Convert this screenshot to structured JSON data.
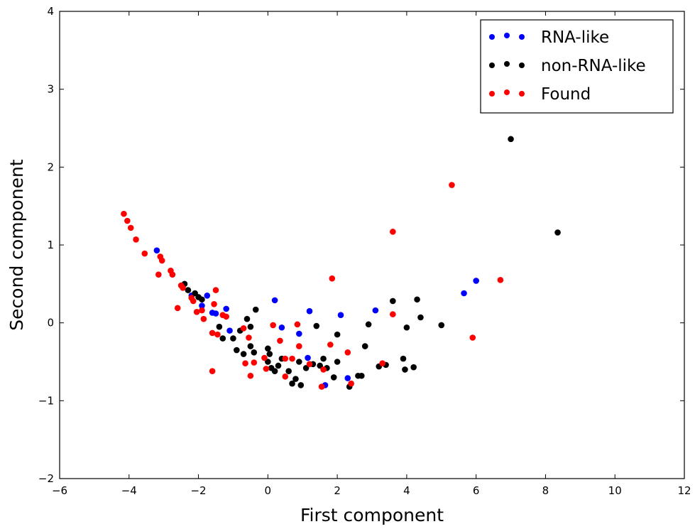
{
  "chart_data": {
    "type": "scatter",
    "title": "",
    "xlabel": "First component",
    "ylabel": "Second component",
    "xlim": [
      -6,
      12
    ],
    "ylim": [
      -2,
      4
    ],
    "x_ticks": [
      "−6",
      "−4",
      "−2",
      "0",
      "2",
      "4",
      "6",
      "8",
      "10",
      "12"
    ],
    "y_ticks": [
      "−2",
      "−1",
      "0",
      "1",
      "2",
      "3",
      "4"
    ],
    "grid": false,
    "legend_position": "top-right",
    "series": [
      {
        "name": "RNA-like",
        "color": "#0000ff",
        "points": [
          [
            -3.2,
            0.93
          ],
          [
            -2.2,
            0.35
          ],
          [
            -1.9,
            0.22
          ],
          [
            -1.75,
            0.35
          ],
          [
            -1.6,
            0.13
          ],
          [
            -1.5,
            0.12
          ],
          [
            -1.2,
            0.18
          ],
          [
            -1.1,
            -0.1
          ],
          [
            0.2,
            0.29
          ],
          [
            0.4,
            -0.06
          ],
          [
            0.9,
            -0.14
          ],
          [
            1.15,
            -0.45
          ],
          [
            1.2,
            0.15
          ],
          [
            1.65,
            -0.8
          ],
          [
            2.1,
            0.1
          ],
          [
            2.3,
            -0.71
          ],
          [
            3.1,
            0.16
          ],
          [
            5.65,
            0.38
          ],
          [
            6.0,
            0.54
          ]
        ]
      },
      {
        "name": "non-RNA-like",
        "color": "#000000",
        "points": [
          [
            -2.4,
            0.5
          ],
          [
            -2.3,
            0.42
          ],
          [
            -2.1,
            0.38
          ],
          [
            -2.0,
            0.33
          ],
          [
            -1.9,
            0.3
          ],
          [
            -1.4,
            -0.05
          ],
          [
            -1.3,
            -0.2
          ],
          [
            -1.0,
            -0.2
          ],
          [
            -0.9,
            -0.35
          ],
          [
            -0.8,
            -0.1
          ],
          [
            -0.7,
            -0.4
          ],
          [
            -0.6,
            0.05
          ],
          [
            -0.5,
            -0.3
          ],
          [
            -0.5,
            -0.05
          ],
          [
            -0.4,
            -0.38
          ],
          [
            -0.35,
            0.17
          ],
          [
            0.0,
            -0.33
          ],
          [
            0.0,
            -0.5
          ],
          [
            0.05,
            -0.4
          ],
          [
            0.1,
            -0.58
          ],
          [
            0.2,
            -0.62
          ],
          [
            0.3,
            -0.55
          ],
          [
            0.4,
            -0.46
          ],
          [
            0.6,
            -0.62
          ],
          [
            0.7,
            -0.78
          ],
          [
            0.8,
            -0.72
          ],
          [
            0.9,
            -0.5
          ],
          [
            0.95,
            -0.8
          ],
          [
            1.1,
            -0.58
          ],
          [
            1.3,
            -0.53
          ],
          [
            1.4,
            -0.04
          ],
          [
            1.5,
            -0.55
          ],
          [
            1.6,
            -0.46
          ],
          [
            1.7,
            -0.58
          ],
          [
            1.9,
            -0.7
          ],
          [
            2.0,
            -0.5
          ],
          [
            2.0,
            -0.15
          ],
          [
            2.35,
            -0.82
          ],
          [
            2.6,
            -0.68
          ],
          [
            2.7,
            -0.68
          ],
          [
            2.8,
            -0.3
          ],
          [
            2.9,
            -0.02
          ],
          [
            3.2,
            -0.56
          ],
          [
            3.4,
            -0.54
          ],
          [
            3.6,
            0.28
          ],
          [
            3.9,
            -0.46
          ],
          [
            3.95,
            -0.6
          ],
          [
            4.0,
            -0.06
          ],
          [
            4.2,
            -0.57
          ],
          [
            4.3,
            0.3
          ],
          [
            4.4,
            0.07
          ],
          [
            5.0,
            -0.03
          ],
          [
            7.0,
            2.36
          ],
          [
            8.35,
            1.16
          ]
        ]
      },
      {
        "name": "Found",
        "color": "#ff0000",
        "points": [
          [
            -4.15,
            1.4
          ],
          [
            -4.05,
            1.31
          ],
          [
            -3.95,
            1.22
          ],
          [
            -3.8,
            1.07
          ],
          [
            -3.55,
            0.89
          ],
          [
            -3.15,
            0.62
          ],
          [
            -3.1,
            0.85
          ],
          [
            -3.05,
            0.8
          ],
          [
            -2.8,
            0.67
          ],
          [
            -2.75,
            0.62
          ],
          [
            -2.6,
            0.19
          ],
          [
            -2.5,
            0.48
          ],
          [
            -2.45,
            0.45
          ],
          [
            -2.2,
            0.32
          ],
          [
            -2.15,
            0.28
          ],
          [
            -2.05,
            0.14
          ],
          [
            -1.9,
            0.16
          ],
          [
            -1.85,
            0.05
          ],
          [
            -1.6,
            -0.62
          ],
          [
            -1.6,
            -0.13
          ],
          [
            -1.55,
            0.24
          ],
          [
            -1.5,
            0.42
          ],
          [
            -1.45,
            -0.15
          ],
          [
            -1.3,
            0.1
          ],
          [
            -1.2,
            0.08
          ],
          [
            -0.7,
            -0.07
          ],
          [
            -0.65,
            -0.52
          ],
          [
            -0.55,
            -0.19
          ],
          [
            -0.5,
            -0.68
          ],
          [
            -0.4,
            -0.51
          ],
          [
            -0.1,
            -0.45
          ],
          [
            -0.05,
            -0.59
          ],
          [
            0.15,
            -0.03
          ],
          [
            0.35,
            -0.23
          ],
          [
            0.5,
            -0.46
          ],
          [
            0.5,
            -0.69
          ],
          [
            0.7,
            -0.46
          ],
          [
            0.85,
            -0.02
          ],
          [
            0.9,
            -0.3
          ],
          [
            1.2,
            -0.53
          ],
          [
            1.55,
            -0.82
          ],
          [
            1.6,
            -0.6
          ],
          [
            1.8,
            -0.28
          ],
          [
            1.85,
            0.57
          ],
          [
            2.3,
            -0.38
          ],
          [
            2.4,
            -0.78
          ],
          [
            3.3,
            -0.52
          ],
          [
            3.6,
            1.17
          ],
          [
            3.6,
            0.11
          ],
          [
            5.3,
            1.77
          ],
          [
            5.9,
            -0.19
          ],
          [
            6.7,
            0.55
          ]
        ]
      }
    ]
  }
}
